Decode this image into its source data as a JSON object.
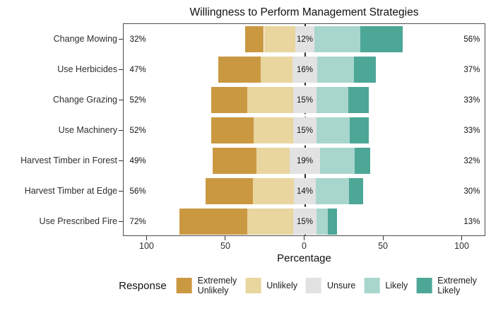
{
  "chart_data": {
    "type": "bar",
    "variant": "diverging-stacked-likert",
    "title": "Willingness to Perform Management Strategies",
    "xlabel": "Percentage",
    "xlim": [
      -115,
      115
    ],
    "grid": false,
    "zero_line_style": "dashed",
    "x_ticks": [
      {
        "value": -100,
        "label": "100"
      },
      {
        "value": -50,
        "label": "50"
      },
      {
        "value": 0,
        "label": "0"
      },
      {
        "value": 50,
        "label": "50"
      },
      {
        "value": 100,
        "label": "100"
      }
    ],
    "legend": {
      "title": "Response",
      "position": "bottom",
      "items": [
        {
          "name": "Extremely Unlikely",
          "label": "Extremely\nUnlikely",
          "color": "#CB9842"
        },
        {
          "name": "Unlikely",
          "label": "Unlikely",
          "color": "#E9D59E"
        },
        {
          "name": "Unsure",
          "label": "Unsure",
          "color": "#E2E2E2"
        },
        {
          "name": "Likely",
          "label": "Likely",
          "color": "#A8D6CD"
        },
        {
          "name": "Extremely Likely",
          "label": "Extremely\nLikely",
          "color": "#4DA796"
        }
      ]
    },
    "categories": [
      "Change Mowing",
      "Use Herbicides",
      "Change Grazing",
      "Use Machinery",
      "Harvest Timber in Forest",
      "Harvest Timber at Edge",
      "Use Prescribed Fire"
    ],
    "rows": [
      {
        "category": "Change Mowing",
        "segments": {
          "extremely_unlikely": 12,
          "unlikely": 20,
          "unsure": 12,
          "likely": 29,
          "extremely_likely": 27
        },
        "labels": {
          "left": "32%",
          "center": "12%",
          "right": "56%"
        }
      },
      {
        "category": "Use Herbicides",
        "segments": {
          "extremely_unlikely": 27,
          "unlikely": 20,
          "unsure": 16,
          "likely": 23,
          "extremely_likely": 14
        },
        "labels": {
          "left": "47%",
          "center": "16%",
          "right": "37%"
        }
      },
      {
        "category": "Change Grazing",
        "segments": {
          "extremely_unlikely": 23,
          "unlikely": 29,
          "unsure": 15,
          "likely": 20,
          "extremely_likely": 13
        },
        "labels": {
          "left": "52%",
          "center": "15%",
          "right": "33%"
        }
      },
      {
        "category": "Use Machinery",
        "segments": {
          "extremely_unlikely": 27,
          "unlikely": 25,
          "unsure": 15,
          "likely": 21,
          "extremely_likely": 12
        },
        "labels": {
          "left": "52%",
          "center": "15%",
          "right": "33%"
        }
      },
      {
        "category": "Harvest Timber in Forest",
        "segments": {
          "extremely_unlikely": 28,
          "unlikely": 21,
          "unsure": 19,
          "likely": 22,
          "extremely_likely": 10
        },
        "labels": {
          "left": "49%",
          "center": "19%",
          "right": "32%"
        }
      },
      {
        "category": "Harvest Timber at Edge",
        "segments": {
          "extremely_unlikely": 30,
          "unlikely": 26,
          "unsure": 14,
          "likely": 21,
          "extremely_likely": 9
        },
        "labels": {
          "left": "56%",
          "center": "14%",
          "right": "30%"
        }
      },
      {
        "category": "Use Prescribed Fire",
        "segments": {
          "extremely_unlikely": 43,
          "unlikely": 29,
          "unsure": 15,
          "likely": 7,
          "extremely_likely": 6
        },
        "labels": {
          "left": "72%",
          "center": "15%",
          "right": "13%"
        }
      }
    ]
  }
}
